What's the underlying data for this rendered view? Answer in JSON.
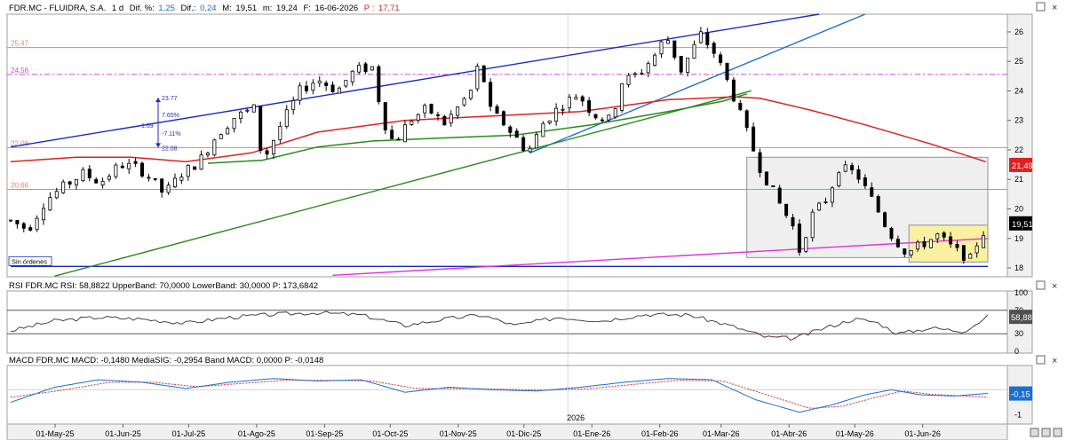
{
  "header": {
    "symbol": "FDR.MC - FLUIDRA, S.A.",
    "period": "1 d",
    "diff_pct_label": "Dif. %:",
    "diff_pct": "1,25",
    "diff_label": "Dif.:",
    "diff": "0,24",
    "high_label": "M:",
    "high": "19,51",
    "low_label": "m:",
    "low": "19,24",
    "date_label": "F:",
    "date": "16-06-2026",
    "p_label": "P :",
    "p": "17,71"
  },
  "chart_data": [
    {
      "type": "candlestick",
      "name": "price",
      "ylim": [
        17.7,
        26.6
      ],
      "yticks": [
        18,
        19,
        20,
        21,
        22,
        23,
        24,
        25,
        26
      ],
      "last_price_label": "19,51",
      "ma_label": "21,49",
      "level_labels": [
        {
          "value": 25.47,
          "text": "25,47",
          "color": "#f08060"
        },
        {
          "value": 24.56,
          "text": "24,56",
          "color": "#e040e0"
        },
        {
          "value": 22.08,
          "text": "22,08",
          "color": "#f08060"
        },
        {
          "value": 20.66,
          "text": "20,66",
          "color": "#f08060"
        }
      ],
      "order_label": "Sin órdenes",
      "measure": {
        "top": "23.77",
        "pct_up": "7.65%",
        "mid": "1.69",
        "pct_down": "-7.11%",
        "bottom": "22.08"
      },
      "anchors": [
        {
          "d": 0,
          "v": 19.6
        },
        {
          "d": 8,
          "v": 19.3
        },
        {
          "d": 16,
          "v": 20.3
        },
        {
          "d": 25,
          "v": 20.8
        },
        {
          "d": 33,
          "v": 21.2
        },
        {
          "d": 41,
          "v": 20.9
        },
        {
          "d": 50,
          "v": 21.5
        },
        {
          "d": 58,
          "v": 21.4
        },
        {
          "d": 63,
          "v": 21.1
        },
        {
          "d": 70,
          "v": 20.5
        },
        {
          "d": 78,
          "v": 21.2
        },
        {
          "d": 86,
          "v": 21.6
        },
        {
          "d": 94,
          "v": 22.5
        },
        {
          "d": 102,
          "v": 23.1
        },
        {
          "d": 111,
          "v": 23.4
        },
        {
          "d": 115,
          "v": 21.6
        },
        {
          "d": 123,
          "v": 22.8
        },
        {
          "d": 132,
          "v": 24.0
        },
        {
          "d": 140,
          "v": 24.4
        },
        {
          "d": 149,
          "v": 24.0
        },
        {
          "d": 157,
          "v": 24.7
        },
        {
          "d": 165,
          "v": 24.8
        },
        {
          "d": 170,
          "v": 23.0
        },
        {
          "d": 175,
          "v": 22.2
        },
        {
          "d": 182,
          "v": 23.0
        },
        {
          "d": 190,
          "v": 23.4
        },
        {
          "d": 198,
          "v": 22.9
        },
        {
          "d": 206,
          "v": 23.6
        },
        {
          "d": 212,
          "v": 24.2
        },
        {
          "d": 214,
          "v": 25.3
        },
        {
          "d": 218,
          "v": 23.4
        },
        {
          "d": 225,
          "v": 22.9
        },
        {
          "d": 232,
          "v": 22.3
        },
        {
          "d": 236,
          "v": 21.9
        },
        {
          "d": 243,
          "v": 22.9
        },
        {
          "d": 251,
          "v": 23.5
        },
        {
          "d": 259,
          "v": 23.9
        },
        {
          "d": 266,
          "v": 23.2
        },
        {
          "d": 274,
          "v": 23.0
        },
        {
          "d": 279,
          "v": 24.3
        },
        {
          "d": 287,
          "v": 24.6
        },
        {
          "d": 295,
          "v": 25.3
        },
        {
          "d": 299,
          "v": 25.9
        },
        {
          "d": 306,
          "v": 24.7
        },
        {
          "d": 315,
          "v": 25.9
        },
        {
          "d": 322,
          "v": 25.2
        },
        {
          "d": 329,
          "v": 24.0
        },
        {
          "d": 335,
          "v": 22.8
        },
        {
          "d": 342,
          "v": 21.4
        },
        {
          "d": 350,
          "v": 20.3
        },
        {
          "d": 357,
          "v": 19.4
        },
        {
          "d": 360,
          "v": 18.6
        },
        {
          "d": 366,
          "v": 19.8
        },
        {
          "d": 373,
          "v": 20.4
        },
        {
          "d": 378,
          "v": 21.4
        },
        {
          "d": 386,
          "v": 21.2
        },
        {
          "d": 394,
          "v": 20.2
        },
        {
          "d": 401,
          "v": 19.2
        },
        {
          "d": 409,
          "v": 18.5
        },
        {
          "d": 416,
          "v": 18.8
        },
        {
          "d": 423,
          "v": 19.1
        },
        {
          "d": 431,
          "v": 18.6
        },
        {
          "d": 438,
          "v": 18.3
        },
        {
          "d": 442,
          "v": 19.0
        },
        {
          "d": 446,
          "v": 19.4
        }
      ],
      "ma_anchors": [
        {
          "d": 0,
          "v": 21.6
        },
        {
          "d": 30,
          "v": 21.75
        },
        {
          "d": 55,
          "v": 21.75
        },
        {
          "d": 80,
          "v": 21.6
        },
        {
          "d": 110,
          "v": 21.9
        },
        {
          "d": 140,
          "v": 22.6
        },
        {
          "d": 180,
          "v": 23.0
        },
        {
          "d": 220,
          "v": 23.15
        },
        {
          "d": 260,
          "v": 23.3
        },
        {
          "d": 300,
          "v": 23.7
        },
        {
          "d": 330,
          "v": 23.8
        },
        {
          "d": 342,
          "v": 23.75
        },
        {
          "d": 365,
          "v": 23.35
        },
        {
          "d": 390,
          "v": 22.85
        },
        {
          "d": 420,
          "v": 22.2
        },
        {
          "d": 445,
          "v": 21.6
        }
      ],
      "ma_short_anchors": [
        {
          "d": 90,
          "v": 21.55
        },
        {
          "d": 115,
          "v": 21.65
        },
        {
          "d": 140,
          "v": 22.1
        },
        {
          "d": 165,
          "v": 22.3
        },
        {
          "d": 195,
          "v": 22.4
        },
        {
          "d": 230,
          "v": 22.5
        },
        {
          "d": 265,
          "v": 22.85
        },
        {
          "d": 300,
          "v": 23.3
        },
        {
          "d": 325,
          "v": 23.65
        },
        {
          "d": 336,
          "v": 23.9
        }
      ],
      "trendlines": [
        {
          "color": "#1a2bc0",
          "from": {
            "d": 0,
            "v": 22.1
          },
          "to": {
            "d": 369,
            "v": 26.6
          }
        },
        {
          "color": "#1a2bc0",
          "from": {
            "d": 0,
            "v": 18.05
          },
          "to": {
            "d": 446,
            "v": 18.05
          }
        },
        {
          "color": "#1c6fd0",
          "from": {
            "d": 237,
            "v": 21.9
          },
          "to": {
            "d": 390,
            "v": 26.6
          }
        },
        {
          "color": "#2a8a1a",
          "from": {
            "d": 20,
            "v": 17.72
          },
          "to": {
            "d": 338,
            "v": 24.0
          }
        },
        {
          "color": "#e030e0",
          "from": {
            "d": 147,
            "v": 17.75
          },
          "to": {
            "d": 446,
            "v": 19.0
          }
        }
      ],
      "boxes": [
        {
          "from": {
            "d": 336,
            "v": 21.75
          },
          "to": {
            "d": 446,
            "v": 18.35
          },
          "fill": "#efefef"
        },
        {
          "from": {
            "d": 410,
            "v": 19.45
          },
          "to": {
            "d": 446,
            "v": 18.2
          },
          "fill": "#f9f1a0"
        }
      ]
    },
    {
      "type": "line",
      "name": "rsi",
      "title": "RSI FDR.MC RSI: 58,8822 UpperBand: 70,0000 LowerBand: 30,0000 P: 173,6842",
      "ylim": [
        0,
        100
      ],
      "yticks": [
        0,
        30,
        70,
        100
      ],
      "upper_band": 70,
      "lower_band": 30,
      "last_value_label": "58,88",
      "anchors": [
        {
          "d": 0,
          "v": 35
        },
        {
          "d": 20,
          "v": 52
        },
        {
          "d": 40,
          "v": 58
        },
        {
          "d": 60,
          "v": 55
        },
        {
          "d": 80,
          "v": 48
        },
        {
          "d": 100,
          "v": 58
        },
        {
          "d": 120,
          "v": 63
        },
        {
          "d": 140,
          "v": 66
        },
        {
          "d": 160,
          "v": 62
        },
        {
          "d": 180,
          "v": 44
        },
        {
          "d": 200,
          "v": 56
        },
        {
          "d": 215,
          "v": 62
        },
        {
          "d": 230,
          "v": 44
        },
        {
          "d": 250,
          "v": 58
        },
        {
          "d": 270,
          "v": 52
        },
        {
          "d": 290,
          "v": 63
        },
        {
          "d": 310,
          "v": 62
        },
        {
          "d": 330,
          "v": 42
        },
        {
          "d": 345,
          "v": 24
        },
        {
          "d": 358,
          "v": 22
        },
        {
          "d": 370,
          "v": 38
        },
        {
          "d": 385,
          "v": 55
        },
        {
          "d": 395,
          "v": 50
        },
        {
          "d": 405,
          "v": 30
        },
        {
          "d": 420,
          "v": 40
        },
        {
          "d": 435,
          "v": 34
        },
        {
          "d": 446,
          "v": 59
        }
      ]
    },
    {
      "type": "line",
      "name": "macd",
      "title": "MACD FDR.MC MACD: -0,1480 MediaSIG: -0,2954 Band MACD: 0,0000 P: -0,0148",
      "ylim": [
        -1.3,
        0.9
      ],
      "yticks": [
        -1,
        0
      ],
      "last_value_label": "-0,15",
      "macd_anchors": [
        {
          "d": 0,
          "v": -0.5
        },
        {
          "d": 20,
          "v": 0.1
        },
        {
          "d": 40,
          "v": 0.4
        },
        {
          "d": 60,
          "v": 0.3
        },
        {
          "d": 80,
          "v": 0.05
        },
        {
          "d": 100,
          "v": 0.3
        },
        {
          "d": 120,
          "v": 0.45
        },
        {
          "d": 140,
          "v": 0.35
        },
        {
          "d": 160,
          "v": 0.4
        },
        {
          "d": 180,
          "v": -0.1
        },
        {
          "d": 200,
          "v": 0.1
        },
        {
          "d": 220,
          "v": 0.0
        },
        {
          "d": 240,
          "v": -0.05
        },
        {
          "d": 260,
          "v": 0.1
        },
        {
          "d": 280,
          "v": 0.3
        },
        {
          "d": 300,
          "v": 0.45
        },
        {
          "d": 320,
          "v": 0.4
        },
        {
          "d": 340,
          "v": -0.4
        },
        {
          "d": 360,
          "v": -0.9
        },
        {
          "d": 375,
          "v": -0.6
        },
        {
          "d": 390,
          "v": -0.2
        },
        {
          "d": 402,
          "v": 0.0
        },
        {
          "d": 415,
          "v": -0.2
        },
        {
          "d": 430,
          "v": -0.25
        },
        {
          "d": 446,
          "v": -0.15
        }
      ],
      "signal_anchors": [
        {
          "d": 0,
          "v": -0.3
        },
        {
          "d": 25,
          "v": 0.0
        },
        {
          "d": 45,
          "v": 0.3
        },
        {
          "d": 65,
          "v": 0.3
        },
        {
          "d": 85,
          "v": 0.12
        },
        {
          "d": 105,
          "v": 0.25
        },
        {
          "d": 125,
          "v": 0.38
        },
        {
          "d": 145,
          "v": 0.38
        },
        {
          "d": 165,
          "v": 0.35
        },
        {
          "d": 185,
          "v": 0.05
        },
        {
          "d": 205,
          "v": 0.05
        },
        {
          "d": 225,
          "v": 0.02
        },
        {
          "d": 245,
          "v": -0.02
        },
        {
          "d": 265,
          "v": 0.05
        },
        {
          "d": 285,
          "v": 0.22
        },
        {
          "d": 305,
          "v": 0.38
        },
        {
          "d": 325,
          "v": 0.35
        },
        {
          "d": 345,
          "v": -0.2
        },
        {
          "d": 365,
          "v": -0.75
        },
        {
          "d": 380,
          "v": -0.65
        },
        {
          "d": 395,
          "v": -0.3
        },
        {
          "d": 407,
          "v": -0.05
        },
        {
          "d": 420,
          "v": -0.18
        },
        {
          "d": 435,
          "v": -0.25
        },
        {
          "d": 446,
          "v": -0.3
        }
      ]
    }
  ],
  "x_axis": {
    "year_label": "2026",
    "year_day": 234,
    "labels": [
      {
        "text": "01-May-25",
        "d": 0
      },
      {
        "text": "01-Jun-25",
        "d": 31
      },
      {
        "text": "01-Jul-25",
        "d": 61
      },
      {
        "text": "01-Ago-25",
        "d": 92
      },
      {
        "text": "01-Sep-25",
        "d": 123
      },
      {
        "text": "01-Oct-25",
        "d": 153
      },
      {
        "text": "01-Nov-25",
        "d": 184
      },
      {
        "text": "01-Dic-25",
        "d": 214
      },
      {
        "text": "01-Ene-26",
        "d": 245
      },
      {
        "text": "01-Feb-26",
        "d": 276
      },
      {
        "text": "01-Mar-26",
        "d": 304
      },
      {
        "text": "01-Abr-26",
        "d": 335
      },
      {
        "text": "01-May-26",
        "d": 365
      },
      {
        "text": "01-Jun-26",
        "d": 396
      }
    ]
  },
  "colors": {
    "bull": "#ffffff",
    "bear": "#000000",
    "ma_long": "#e02020",
    "ma_short": "#2a8a1a",
    "rsi": "#303030",
    "macd": "#1c6fd0",
    "signal": "#e03030",
    "axis_bg": "#e8e8e8"
  }
}
